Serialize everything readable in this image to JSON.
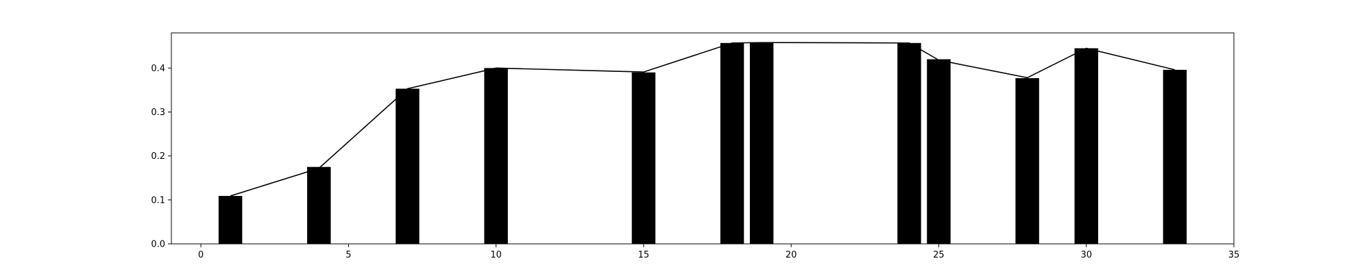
{
  "chart_data": {
    "type": "bar",
    "title": "",
    "xlabel": "",
    "ylabel": "",
    "xlim": [
      -1,
      35
    ],
    "ylim": [
      0,
      0.48
    ],
    "grid": false,
    "bar_width": 0.8,
    "colors": {
      "bar": "#000000",
      "line": "#000000",
      "axes": "#000000",
      "background": "#ffffff"
    },
    "x_ticks": [
      0,
      5,
      10,
      15,
      20,
      25,
      30,
      35
    ],
    "x_tick_labels": [
      "0",
      "5",
      "10",
      "15",
      "20",
      "25",
      "30",
      "35"
    ],
    "y_ticks": [
      0.0,
      0.1,
      0.2,
      0.3,
      0.4
    ],
    "y_tick_labels": [
      "0.0",
      "0.1",
      "0.2",
      "0.3",
      "0.4"
    ],
    "bars": {
      "x": [
        1,
        4,
        7,
        10,
        15,
        18,
        19,
        24,
        25,
        28,
        30,
        33
      ],
      "values": [
        0.109,
        0.175,
        0.353,
        0.4,
        0.39,
        0.457,
        0.457,
        0.457,
        0.42,
        0.377,
        0.445,
        0.396
      ]
    },
    "line": {
      "x": [
        1,
        4,
        7,
        10,
        15,
        18,
        19,
        24,
        25,
        28,
        30,
        33
      ],
      "values": [
        0.109,
        0.172,
        0.353,
        0.4,
        0.391,
        0.457,
        0.458,
        0.457,
        0.418,
        0.378,
        0.445,
        0.396
      ]
    }
  }
}
